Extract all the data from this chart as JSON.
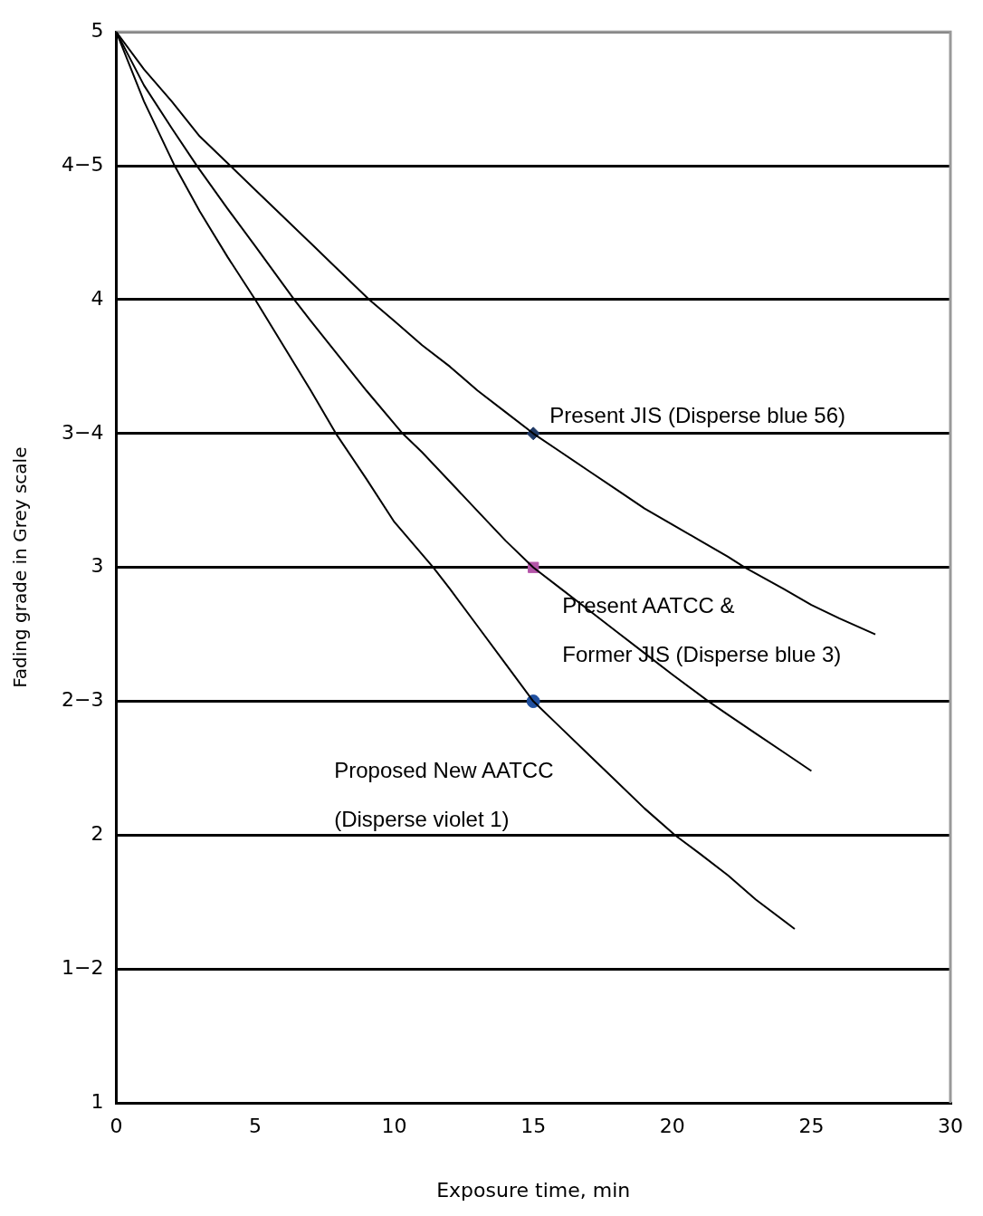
{
  "chart_data": {
    "type": "line",
    "xlabel": "Exposure time, min",
    "ylabel": "Fading grade in Grey scale",
    "xlim": [
      0,
      30
    ],
    "xticks": [
      0,
      5,
      10,
      15,
      20,
      25,
      30
    ],
    "ylim": [
      1,
      5
    ],
    "yticks": [
      1,
      {
        "value": 1.5,
        "label": "1−2"
      },
      2,
      {
        "value": 2.5,
        "label": "2−3"
      },
      3,
      {
        "value": 3.5,
        "label": "3−4"
      },
      4,
      {
        "value": 4.5,
        "label": "4−5"
      },
      5
    ],
    "grid": "y",
    "legend": false,
    "marker": "none",
    "line_style": "solid",
    "series": [
      {
        "type": "line",
        "color": "#000000",
        "x": [
          0,
          1,
          2,
          3,
          4.1,
          5,
          6,
          7,
          8,
          9.1,
          10,
          11,
          12,
          13,
          14,
          15,
          16,
          17,
          18,
          19,
          20,
          21,
          22,
          22.6,
          24,
          25,
          26,
          27.3
        ],
        "values": [
          5,
          4.86,
          4.74,
          4.61,
          4.5,
          4.41,
          4.31,
          4.21,
          4.11,
          4,
          3.92,
          3.83,
          3.75,
          3.66,
          3.58,
          3.5,
          3.43,
          3.36,
          3.29,
          3.22,
          3.16,
          3.1,
          3.04,
          3,
          2.92,
          2.86,
          2.81,
          2.75
        ]
      },
      {
        "type": "line",
        "color": "#000000",
        "x": [
          0,
          1,
          2,
          2.9,
          4,
          5,
          6.4,
          7,
          8,
          9,
          10.3,
          11,
          12,
          13,
          14,
          15,
          16,
          17,
          18,
          19,
          20,
          21.3,
          22,
          23,
          24,
          25
        ],
        "values": [
          5,
          4.8,
          4.64,
          4.5,
          4.34,
          4.2,
          4,
          3.92,
          3.79,
          3.66,
          3.5,
          3.43,
          3.32,
          3.21,
          3.1,
          3,
          2.92,
          2.84,
          2.76,
          2.68,
          2.6,
          2.5,
          2.45,
          2.38,
          2.31,
          2.24
        ]
      },
      {
        "type": "line",
        "color": "#000000",
        "x": [
          0,
          1,
          2.1,
          3,
          4,
          5,
          6,
          7,
          7.9,
          9,
          10,
          11.4,
          12,
          13,
          14,
          15,
          16,
          17,
          18,
          19,
          20.1,
          21,
          22,
          23,
          24.4
        ],
        "values": [
          5,
          4.74,
          4.5,
          4.33,
          4.16,
          4,
          3.83,
          3.66,
          3.5,
          3.33,
          3.17,
          3,
          2.92,
          2.78,
          2.64,
          2.5,
          2.4,
          2.3,
          2.2,
          2.1,
          2,
          1.93,
          1.85,
          1.76,
          1.65
        ]
      },
      {
        "type": "scatter",
        "name": "Present JIS (Disperse blue 56)",
        "color": "#1f3864",
        "marker": "diamond",
        "x": [
          15
        ],
        "values": [
          3.5
        ]
      },
      {
        "type": "scatter",
        "name": "Present AATCC &\nFormer JIS (Disperse blue 3)",
        "color": "#b455a8",
        "marker": "square",
        "x": [
          15
        ],
        "values": [
          3
        ]
      },
      {
        "type": "scatter",
        "name": "Proposed New AATCC (Disperse violet 1)",
        "color": "#2050a0",
        "marker": "circle",
        "x": [
          15
        ],
        "values": [
          2.5
        ]
      }
    ]
  }
}
